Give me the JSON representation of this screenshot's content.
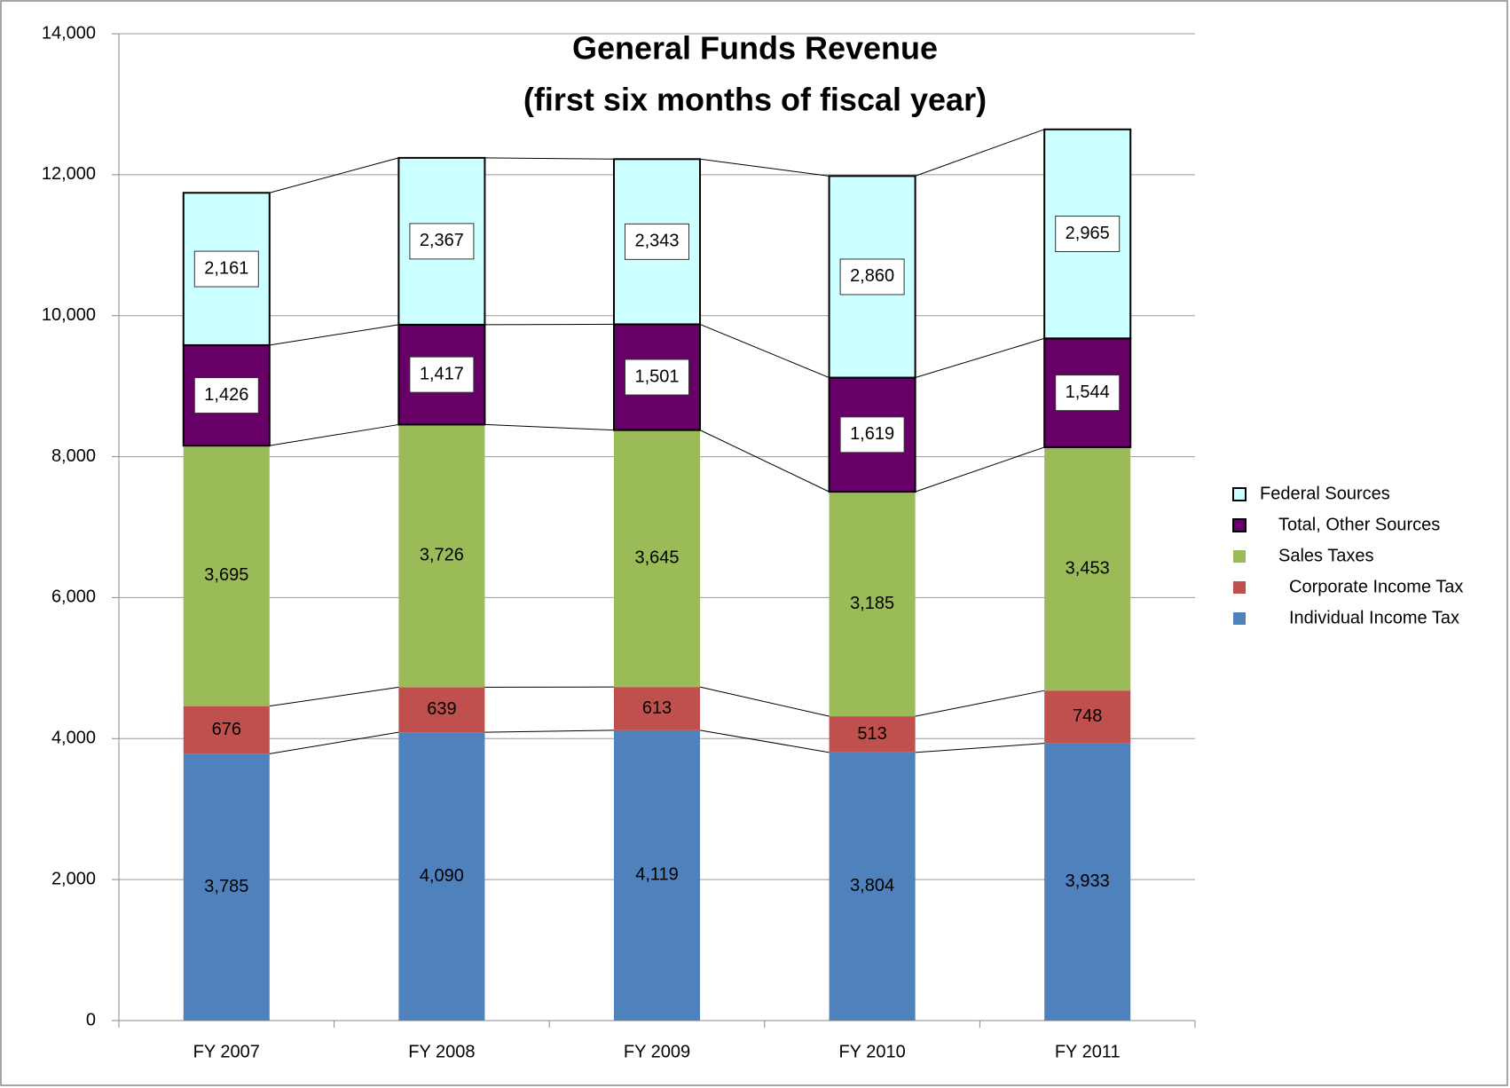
{
  "chart_data": {
    "type": "stacked_bar",
    "title": "General Funds Revenue",
    "subtitle": "(first six months of fiscal year)",
    "categories": [
      "FY 2007",
      "FY 2008",
      "FY 2009",
      "FY 2010",
      "FY 2011"
    ],
    "series": [
      {
        "name": "Individual Income Tax",
        "color": "#4f81bd",
        "values": [
          3785,
          4090,
          4119,
          3804,
          3933
        ],
        "value_labels": [
          "3,785",
          "4,090",
          "4,119",
          "3,804",
          "3,933"
        ]
      },
      {
        "name": "Corporate Income Tax",
        "color": "#c0504d",
        "values": [
          676,
          639,
          613,
          513,
          748
        ]
      },
      {
        "name": "Sales Taxes",
        "color": "#9bbb59",
        "values": [
          3695,
          3726,
          3645,
          3185,
          3453
        ],
        "value_labels": [
          "3,695",
          "3,726",
          "3,645",
          "3,185",
          "3,453"
        ]
      },
      {
        "name": "Total, Other Sources",
        "color": "#660066",
        "values": [
          1426,
          1417,
          1501,
          1619,
          1544
        ],
        "value_labels": [
          "1,426",
          "1,417",
          "1,501",
          "1,619",
          "1,544"
        ]
      },
      {
        "name": "Federal Sources",
        "color": "#ccffff",
        "values": [
          2161,
          2367,
          2343,
          2860,
          2965
        ],
        "value_labels": [
          "2,161",
          "2,367",
          "2,343",
          "2,860",
          "2,965"
        ]
      }
    ],
    "ylim": [
      0,
      14000
    ],
    "yticks": [
      0,
      {
        "value": 2000,
        "label": "2,000"
      },
      {
        "value": 4000,
        "label": "4,000"
      },
      {
        "value": 6000,
        "label": "6,000"
      },
      {
        "value": 8000,
        "label": "8,000"
      },
      {
        "value": 10000,
        "label": "10,000"
      },
      {
        "value": 12000,
        "label": "12,000"
      },
      {
        "value": 14000,
        "label": "14,000"
      }
    ],
    "grid": true,
    "legend": "right"
  }
}
